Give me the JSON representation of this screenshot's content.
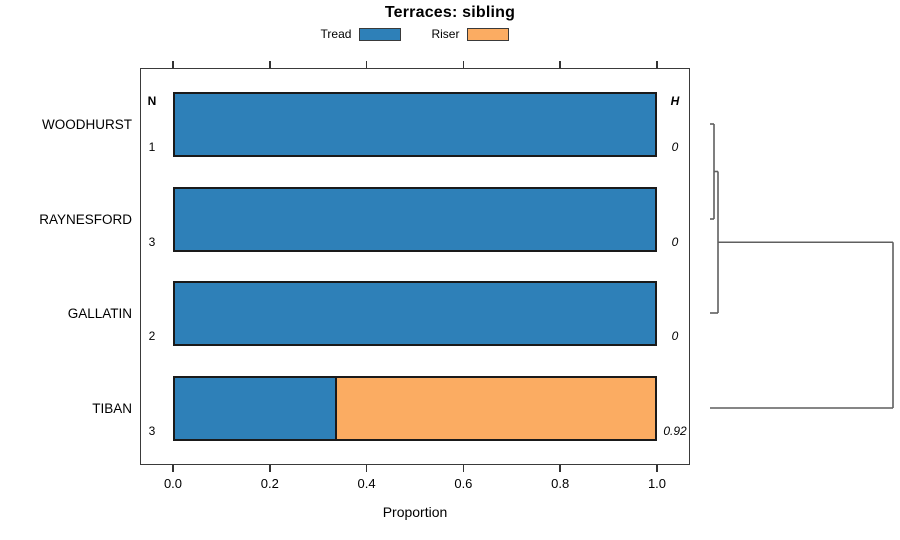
{
  "title": "Terraces: sibling",
  "legend": {
    "items": [
      {
        "label": "Tread",
        "color": "#2E80B8"
      },
      {
        "label": "Riser",
        "color": "#FBAC62"
      }
    ]
  },
  "columns": {
    "n_header": "N",
    "h_header": "H"
  },
  "xlabel": "Proportion",
  "chart_data": {
    "type": "bar",
    "orientation": "horizontal",
    "stacked": true,
    "title": "Terraces: sibling",
    "xlabel": "Proportion",
    "xlim": [
      0,
      1
    ],
    "xticks": [
      {
        "value": 0.0,
        "label": "0.0"
      },
      {
        "value": 0.2,
        "label": "0.2"
      },
      {
        "value": 0.4,
        "label": "0.4"
      },
      {
        "value": 0.6,
        "label": "0.6"
      },
      {
        "value": 0.8,
        "label": "0.8"
      },
      {
        "value": 1.0,
        "label": "1.0"
      }
    ],
    "categories": [
      "WOODHURST",
      "RAYNESFORD",
      "GALLATIN",
      "TIBAN"
    ],
    "series": [
      {
        "name": "Tread",
        "color": "#2E80B8",
        "values": [
          1,
          1,
          1,
          0.333
        ]
      },
      {
        "name": "Riser",
        "color": "#FBAC62",
        "values": [
          0,
          0,
          0,
          0.667
        ]
      }
    ],
    "n_values": [
      "1",
      "3",
      "2",
      "3"
    ],
    "h_values": [
      "0",
      "0",
      "0",
      "0.92"
    ],
    "dendrogram": {
      "max_height": 0.92,
      "heights": [
        0,
        0,
        0.92
      ],
      "merges": [
        [
          "L0",
          "L1"
        ],
        [
          "M0",
          "L2"
        ],
        [
          "M1",
          "L3"
        ]
      ]
    }
  }
}
